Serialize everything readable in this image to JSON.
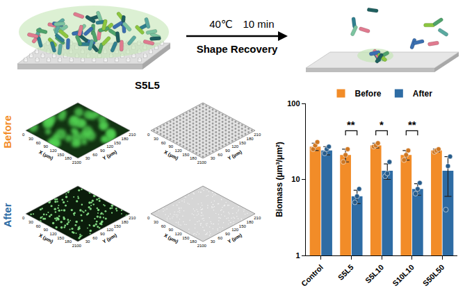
{
  "schematic": {
    "condition": [
      "40℃",
      "10 min"
    ],
    "label": "Shape Recovery"
  },
  "images": {
    "title": "S5L5",
    "rows": [
      "Before",
      "After"
    ],
    "x_axis": "X (μm)",
    "y_axis": "Y (μm)",
    "ticks": [
      0,
      30,
      60,
      90,
      120,
      150,
      180,
      210
    ]
  },
  "chart_data": {
    "type": "bar",
    "categories": [
      "Control",
      "S5L5",
      "S5L10",
      "S10L10",
      "S50L50"
    ],
    "series": [
      {
        "name": "Before",
        "color": "#F28C28",
        "values": [
          27,
          21,
          28,
          21,
          24
        ],
        "errors": [
          3,
          4,
          2,
          3,
          1
        ],
        "points": [
          [
            25,
            28,
            31
          ],
          [
            17,
            21,
            25
          ],
          [
            27,
            28,
            30
          ],
          [
            18,
            21,
            24
          ],
          [
            23,
            24,
            25
          ]
        ]
      },
      {
        "name": "After",
        "color": "#2E6CA4",
        "values": [
          24,
          6,
          13,
          7.5,
          13
        ],
        "errors": [
          3,
          1.2,
          3,
          1.3,
          7
        ],
        "points": [
          [
            22,
            25,
            27
          ],
          [
            5,
            6,
            7.5
          ],
          [
            11,
            12,
            17
          ],
          [
            6.5,
            7.5,
            9
          ],
          [
            4,
            15,
            20
          ]
        ]
      }
    ],
    "ylabel": "Biomass (μm³/μm²)",
    "ylim": [
      1,
      100
    ],
    "yticks": [
      1,
      10,
      100
    ],
    "log": "y",
    "grid": false,
    "legend": "top",
    "significance": [
      {
        "category": "S5L5",
        "label": "**"
      },
      {
        "category": "S5L10",
        "label": "*"
      },
      {
        "category": "S10L10",
        "label": "**"
      }
    ]
  }
}
